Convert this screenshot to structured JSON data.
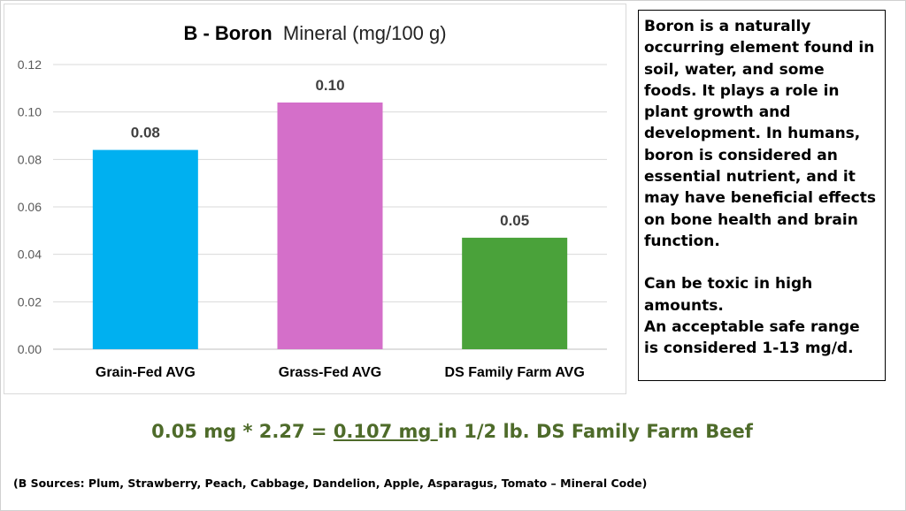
{
  "chart_data": {
    "type": "bar",
    "title": "B - Boron",
    "subtitle": "Mineral (mg/100 g)",
    "categories": [
      "Grain-Fed AVG",
      "Grass-Fed AVG",
      "DS Family Farm AVG"
    ],
    "values": [
      0.084,
      0.104,
      0.047
    ],
    "data_labels": [
      "0.08",
      "0.10",
      "0.05"
    ],
    "colors": [
      "#00b0f0",
      "#d46fc9",
      "#4aa23a"
    ],
    "yticks": [
      "0.00",
      "0.02",
      "0.04",
      "0.06",
      "0.08",
      "0.10",
      "0.12"
    ],
    "ylim": [
      0,
      0.12
    ],
    "grid": true,
    "legend": "none"
  },
  "note": {
    "paragraph1": "Boron is a naturally occurring element found in soil, water, and some foods. It plays a role in plant growth and development. In humans, boron is considered an essential nutrient, and it may have beneficial effects on bone health and brain function.",
    "paragraph2": "Can be toxic in high amounts.",
    "paragraph3": "An acceptable safe range is considered 1-13 mg/d."
  },
  "formula": {
    "prefix": "0.05 mg * 2.27 = ",
    "highlight": "0.107 mg ",
    "suffix": "in 1/2 lb. DS Family Farm Beef"
  },
  "sources": "(B Sources: Plum, Strawberry, Peach, Cabbage, Dandelion, Apple, Asparagus, Tomato – Mineral Code)"
}
